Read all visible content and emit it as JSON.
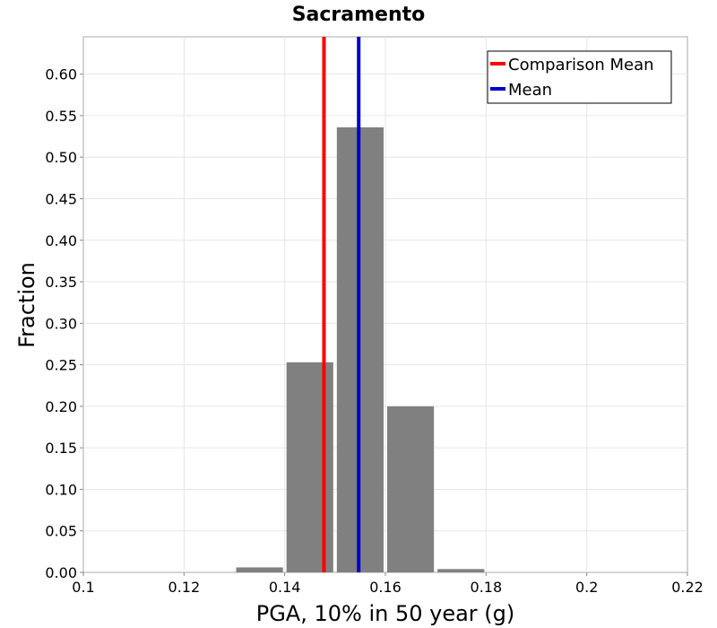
{
  "chart_data": {
    "type": "bar",
    "title": "Sacramento",
    "xlabel": "PGA, 10% in 50 year (g)",
    "ylabel": "Fraction",
    "xlim": [
      0.1,
      0.22
    ],
    "ylim": [
      0,
      0.645
    ],
    "x_ticks": [
      0.1,
      0.12,
      0.14,
      0.16,
      0.18,
      0.2,
      0.22
    ],
    "x_tick_labels": [
      "0.1",
      "0.12",
      "0.14",
      "0.16",
      "0.18",
      "0.2",
      "0.22"
    ],
    "y_ticks": [
      0,
      0.05,
      0.1,
      0.15,
      0.2,
      0.25,
      0.3,
      0.35,
      0.4,
      0.45,
      0.5,
      0.55,
      0.6
    ],
    "y_tick_labels": [
      "0.00",
      "0.05",
      "0.10",
      "0.15",
      "0.20",
      "0.25",
      "0.30",
      "0.35",
      "0.40",
      "0.45",
      "0.50",
      "0.55",
      "0.60"
    ],
    "grid": true,
    "bars": [
      {
        "x_start": 0.13,
        "x_end": 0.14,
        "value": 0.006
      },
      {
        "x_start": 0.14,
        "x_end": 0.15,
        "value": 0.253
      },
      {
        "x_start": 0.15,
        "x_end": 0.16,
        "value": 0.536
      },
      {
        "x_start": 0.16,
        "x_end": 0.17,
        "value": 0.2
      },
      {
        "x_start": 0.17,
        "x_end": 0.18,
        "value": 0.004
      }
    ],
    "bar_color": "#808080",
    "vlines": [
      {
        "name": "Comparison Mean",
        "x": 0.1478,
        "color": "#ff0000"
      },
      {
        "name": "Mean",
        "x": 0.1547,
        "color": "#0000cc"
      }
    ],
    "legend": {
      "placement": "top-right",
      "entries": [
        {
          "label": "Comparison Mean",
          "color": "#ff0000"
        },
        {
          "label": "Mean",
          "color": "#0000cc"
        }
      ]
    }
  }
}
